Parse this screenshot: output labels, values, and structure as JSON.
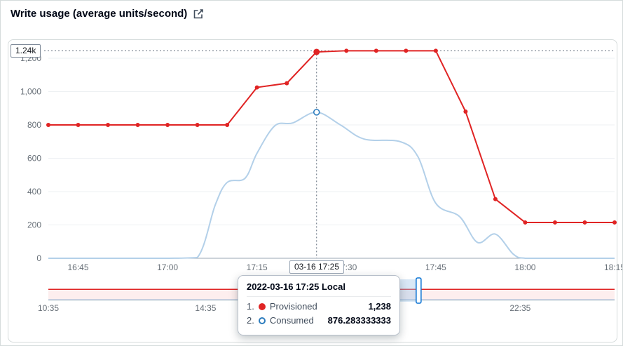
{
  "header": {
    "title": "Write usage (average units/second)"
  },
  "colors": {
    "provisioned": "#e02424",
    "consumed_line": "#b3d0e9",
    "consumed_marker": "#2e7dbe",
    "crosshair": "#5f6b7a",
    "axis_text": "#687078",
    "brush_handle": "#0972d3"
  },
  "chart_data": {
    "type": "line",
    "title": "Write usage (average units/second)",
    "xlabel": "",
    "ylabel": "",
    "ylim": [
      0,
      1300
    ],
    "grid": true,
    "legend_position": "none",
    "x_domain": [
      "16:40",
      "18:15"
    ],
    "x_ticks": [
      "16:45",
      "17:00",
      "17:15",
      "17:30",
      "17:45",
      "18:00",
      "18:15"
    ],
    "y_ticks": [
      {
        "value": 0,
        "label": "0"
      },
      {
        "value": 200,
        "label": "200"
      },
      {
        "value": 400,
        "label": "400"
      },
      {
        "value": 600,
        "label": "600"
      },
      {
        "value": 800,
        "label": "800"
      },
      {
        "value": 1000,
        "label": "1,000"
      },
      {
        "value": 1200,
        "label": "1,200"
      }
    ],
    "max_annotation": {
      "value": 1245,
      "badge": "1.24k"
    },
    "crosshair": {
      "time": "17:25",
      "axis_label": "03-16 17:25",
      "provisioned_value": 1238,
      "consumed_value": 876.283333333
    },
    "series": [
      {
        "name": "Provisioned",
        "color": "#e02424",
        "shape": "linear",
        "markers": true,
        "points": [
          [
            "16:40",
            800
          ],
          [
            "16:45",
            800
          ],
          [
            "16:50",
            800
          ],
          [
            "16:55",
            800
          ],
          [
            "17:00",
            800
          ],
          [
            "17:05",
            800
          ],
          [
            "17:10",
            800
          ],
          [
            "17:15",
            1025
          ],
          [
            "17:20",
            1050
          ],
          [
            "17:25",
            1238
          ],
          [
            "17:30",
            1245
          ],
          [
            "17:35",
            1245
          ],
          [
            "17:40",
            1245
          ],
          [
            "17:45",
            1245
          ],
          [
            "17:50",
            880
          ],
          [
            "17:55",
            355
          ],
          [
            "18:00",
            215
          ],
          [
            "18:05",
            215
          ],
          [
            "18:10",
            215
          ],
          [
            "18:15",
            215
          ]
        ]
      },
      {
        "name": "Consumed",
        "color": "#b3d0e9",
        "shape": "smooth",
        "markers": false,
        "points": [
          [
            "16:40",
            0
          ],
          [
            "16:45",
            0
          ],
          [
            "16:50",
            0
          ],
          [
            "16:55",
            0
          ],
          [
            "17:00",
            0
          ],
          [
            "17:05",
            5
          ],
          [
            "17:08",
            320
          ],
          [
            "17:10",
            455
          ],
          [
            "17:13",
            480
          ],
          [
            "17:15",
            630
          ],
          [
            "17:18",
            795
          ],
          [
            "17:21",
            812
          ],
          [
            "17:25",
            876.283333333
          ],
          [
            "17:29",
            800
          ],
          [
            "17:33",
            715
          ],
          [
            "17:39",
            700
          ],
          [
            "17:42",
            610
          ],
          [
            "17:45",
            330
          ],
          [
            "17:49",
            250
          ],
          [
            "17:52",
            95
          ],
          [
            "17:55",
            145
          ],
          [
            "17:58",
            25
          ],
          [
            "18:00",
            0
          ],
          [
            "18:05",
            0
          ],
          [
            "18:10",
            0
          ],
          [
            "18:15",
            0
          ]
        ]
      }
    ],
    "brush": {
      "x_domain": [
        "10:35",
        "24:59"
      ],
      "x_ticks": [
        "10:35",
        "14:35",
        "22:35"
      ],
      "selection": {
        "from": "16:40",
        "to": "20:00"
      },
      "series": [
        {
          "name": "Provisioned",
          "color": "#e02424",
          "shape": "linear",
          "area": false,
          "points": [
            [
              "10:35",
              800
            ],
            [
              "17:10",
              800
            ],
            [
              "17:15",
              1025
            ],
            [
              "17:25",
              1240
            ],
            [
              "17:45",
              1240
            ],
            [
              "17:50",
              880
            ],
            [
              "17:55",
              370
            ],
            [
              "18:00",
              215
            ],
            [
              "18:35",
              215
            ],
            [
              "18:50",
              800
            ],
            [
              "24:59",
              800
            ]
          ]
        },
        {
          "name": "Consumed",
          "color": "#b3d0e9",
          "shape": "smooth",
          "area": true,
          "points": [
            [
              "10:35",
              0
            ],
            [
              "17:05",
              0
            ],
            [
              "17:10",
              450
            ],
            [
              "17:15",
              630
            ],
            [
              "17:25",
              876
            ],
            [
              "17:33",
              710
            ],
            [
              "17:45",
              310
            ],
            [
              "17:55",
              150
            ],
            [
              "18:00",
              0
            ],
            [
              "24:59",
              0
            ]
          ]
        }
      ]
    }
  },
  "tooltip": {
    "title": "2022-03-16 17:25 Local",
    "rows": [
      {
        "index": "1.",
        "label": "Provisioned",
        "value": "1,238"
      },
      {
        "index": "2.",
        "label": "Consumed",
        "value": "876.283333333"
      }
    ]
  }
}
